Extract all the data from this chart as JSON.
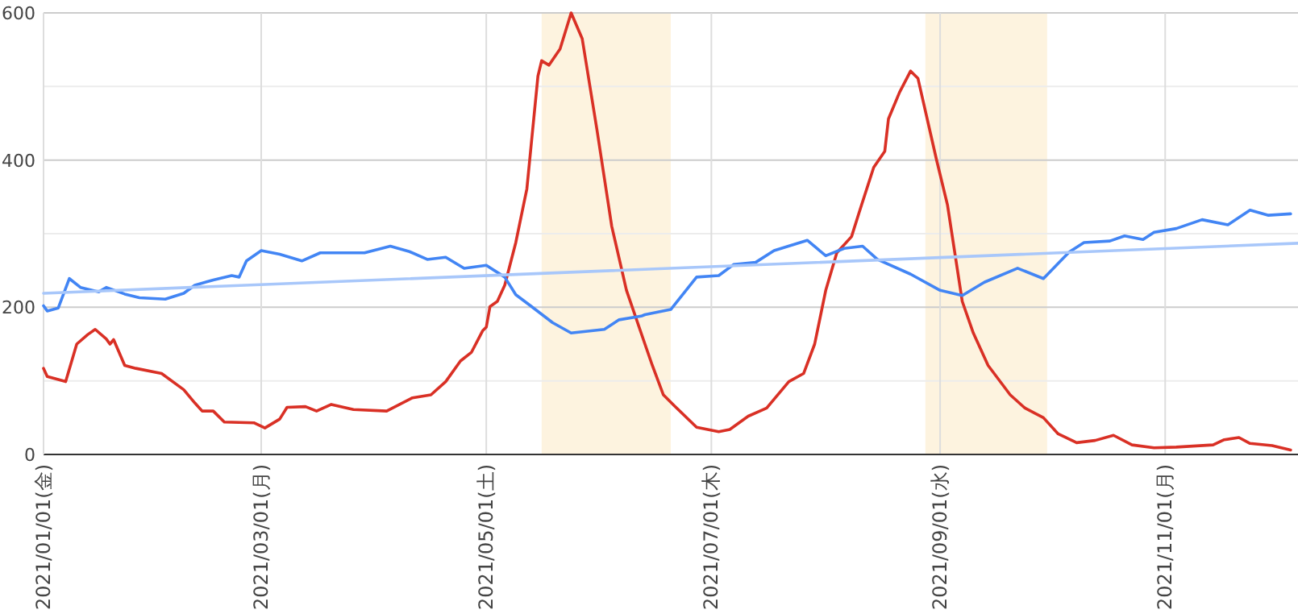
{
  "chart_data": {
    "type": "line",
    "xlim": [
      "2021-01-01",
      "2021-12-07"
    ],
    "xticks": [
      {
        "value": "2021-01-01",
        "label": "2021/01/01(金)"
      },
      {
        "value": "2021-03-01",
        "label": "2021/03/01(月)"
      },
      {
        "value": "2021-05-01",
        "label": "2021/05/01(土)"
      },
      {
        "value": "2021-07-01",
        "label": "2021/07/01(木)"
      },
      {
        "value": "2021-09-01",
        "label": "2021/09/01(水)"
      },
      {
        "value": "2021-11-01",
        "label": "2021/11/01(月)"
      }
    ],
    "ylim": [
      0,
      600
    ],
    "yticks": [
      0,
      {
        "value": 100,
        "label": null
      },
      200,
      {
        "value": 300,
        "label": null
      },
      400,
      {
        "value": 500,
        "label": null
      },
      600
    ],
    "grid": true,
    "marker": "none",
    "line_style": "solid",
    "bands": [
      {
        "axis": "x",
        "from": "2021-05-16",
        "to": "2021-06-20",
        "color": "#fdf3df"
      },
      {
        "axis": "x",
        "from": "2021-08-28",
        "to": "2021-09-30",
        "color": "#fdf3df"
      }
    ],
    "series": [
      {
        "color": "#d93025",
        "x": [
          "2021-01-01",
          "2021-01-02",
          "2021-01-07",
          "2021-01-10",
          "2021-01-13",
          "2021-01-15",
          "2021-01-18",
          "2021-01-19",
          "2021-01-20",
          "2021-01-23",
          "2021-01-26",
          "2021-02-02",
          "2021-02-08",
          "2021-02-11",
          "2021-02-13",
          "2021-02-16",
          "2021-02-19",
          "2021-02-27",
          "2021-03-02",
          "2021-03-06",
          "2021-03-08",
          "2021-03-13",
          "2021-03-16",
          "2021-03-20",
          "2021-03-26",
          "2021-04-04",
          "2021-04-11",
          "2021-04-16",
          "2021-04-20",
          "2021-04-24",
          "2021-04-27",
          "2021-04-30",
          "2021-05-01",
          "2021-05-02",
          "2021-05-04",
          "2021-05-06",
          "2021-05-09",
          "2021-05-12",
          "2021-05-15",
          "2021-05-16",
          "2021-05-18",
          "2021-05-21",
          "2021-05-24",
          "2021-05-27",
          "2021-05-31",
          "2021-06-04",
          "2021-06-08",
          "2021-06-13",
          "2021-06-15",
          "2021-06-18",
          "2021-06-21",
          "2021-06-27",
          "2021-07-03",
          "2021-07-06",
          "2021-07-11",
          "2021-07-16",
          "2021-07-22",
          "2021-07-26",
          "2021-07-29",
          "2021-08-01",
          "2021-08-04",
          "2021-08-08",
          "2021-08-10",
          "2021-08-14",
          "2021-08-17",
          "2021-08-18",
          "2021-08-21",
          "2021-08-24",
          "2021-08-26",
          "2021-08-31",
          "2021-09-03",
          "2021-09-07",
          "2021-09-10",
          "2021-09-14",
          "2021-09-20",
          "2021-09-24",
          "2021-09-29",
          "2021-10-03",
          "2021-10-08",
          "2021-10-13",
          "2021-10-18",
          "2021-10-23",
          "2021-10-29",
          "2021-11-04",
          "2021-11-14",
          "2021-11-17",
          "2021-11-21",
          "2021-11-24",
          "2021-11-30",
          "2021-12-05"
        ],
        "values": [
          117,
          106,
          99,
          150,
          163,
          170,
          157,
          150,
          156,
          121,
          117,
          110,
          88,
          70,
          59,
          59,
          44,
          43,
          36,
          48,
          64,
          65,
          59,
          68,
          61,
          59,
          77,
          81,
          99,
          127,
          139,
          168,
          173,
          201,
          208,
          230,
          288,
          361,
          514,
          535,
          529,
          551,
          600,
          565,
          441,
          310,
          223,
          150,
          121,
          81,
          66,
          37,
          31,
          34,
          52,
          63,
          99,
          110,
          150,
          223,
          274,
          296,
          328,
          390,
          412,
          456,
          492,
          521,
          511,
          401,
          339,
          208,
          165,
          121,
          81,
          63,
          50,
          28,
          16,
          19,
          26,
          13,
          9,
          10,
          13,
          20,
          23,
          15,
          12,
          6
        ]
      },
      {
        "color": "#4285f4",
        "x": [
          "2021-01-01",
          "2021-01-02",
          "2021-01-05",
          "2021-01-08",
          "2021-01-11",
          "2021-01-16",
          "2021-01-18",
          "2021-01-23",
          "2021-01-27",
          "2021-02-03",
          "2021-02-08",
          "2021-02-11",
          "2021-02-16",
          "2021-02-21",
          "2021-02-23",
          "2021-02-25",
          "2021-03-01",
          "2021-03-06",
          "2021-03-12",
          "2021-03-17",
          "2021-03-29",
          "2021-04-05",
          "2021-04-10",
          "2021-04-15",
          "2021-04-20",
          "2021-04-25",
          "2021-05-01",
          "2021-05-06",
          "2021-05-09",
          "2021-05-13",
          "2021-05-19",
          "2021-05-24",
          "2021-06-02",
          "2021-06-06",
          "2021-06-12",
          "2021-06-13",
          "2021-06-20",
          "2021-06-27",
          "2021-07-03",
          "2021-07-07",
          "2021-07-13",
          "2021-07-18",
          "2021-07-27",
          "2021-08-01",
          "2021-08-06",
          "2021-08-11",
          "2021-08-15",
          "2021-08-24",
          "2021-09-01",
          "2021-09-07",
          "2021-09-13",
          "2021-09-22",
          "2021-09-29",
          "2021-10-06",
          "2021-10-10",
          "2021-10-17",
          "2021-10-21",
          "2021-10-26",
          "2021-10-29",
          "2021-11-04",
          "2021-11-11",
          "2021-11-18",
          "2021-11-24",
          "2021-11-29",
          "2021-12-05"
        ],
        "values": [
          202,
          195,
          199,
          239,
          227,
          221,
          227,
          218,
          213,
          211,
          219,
          230,
          237,
          243,
          241,
          263,
          277,
          272,
          263,
          274,
          274,
          283,
          276,
          265,
          268,
          253,
          257,
          241,
          217,
          202,
          179,
          165,
          170,
          183,
          188,
          190,
          197,
          241,
          243,
          258,
          261,
          277,
          291,
          270,
          280,
          283,
          265,
          245,
          223,
          216,
          234,
          253,
          239,
          275,
          288,
          290,
          297,
          292,
          302,
          307,
          319,
          312,
          332,
          325,
          327
        ]
      },
      {
        "color": "#a8c7fa",
        "x": [
          "2021-01-01",
          "2021-12-07"
        ],
        "values": [
          219,
          287
        ]
      }
    ]
  }
}
